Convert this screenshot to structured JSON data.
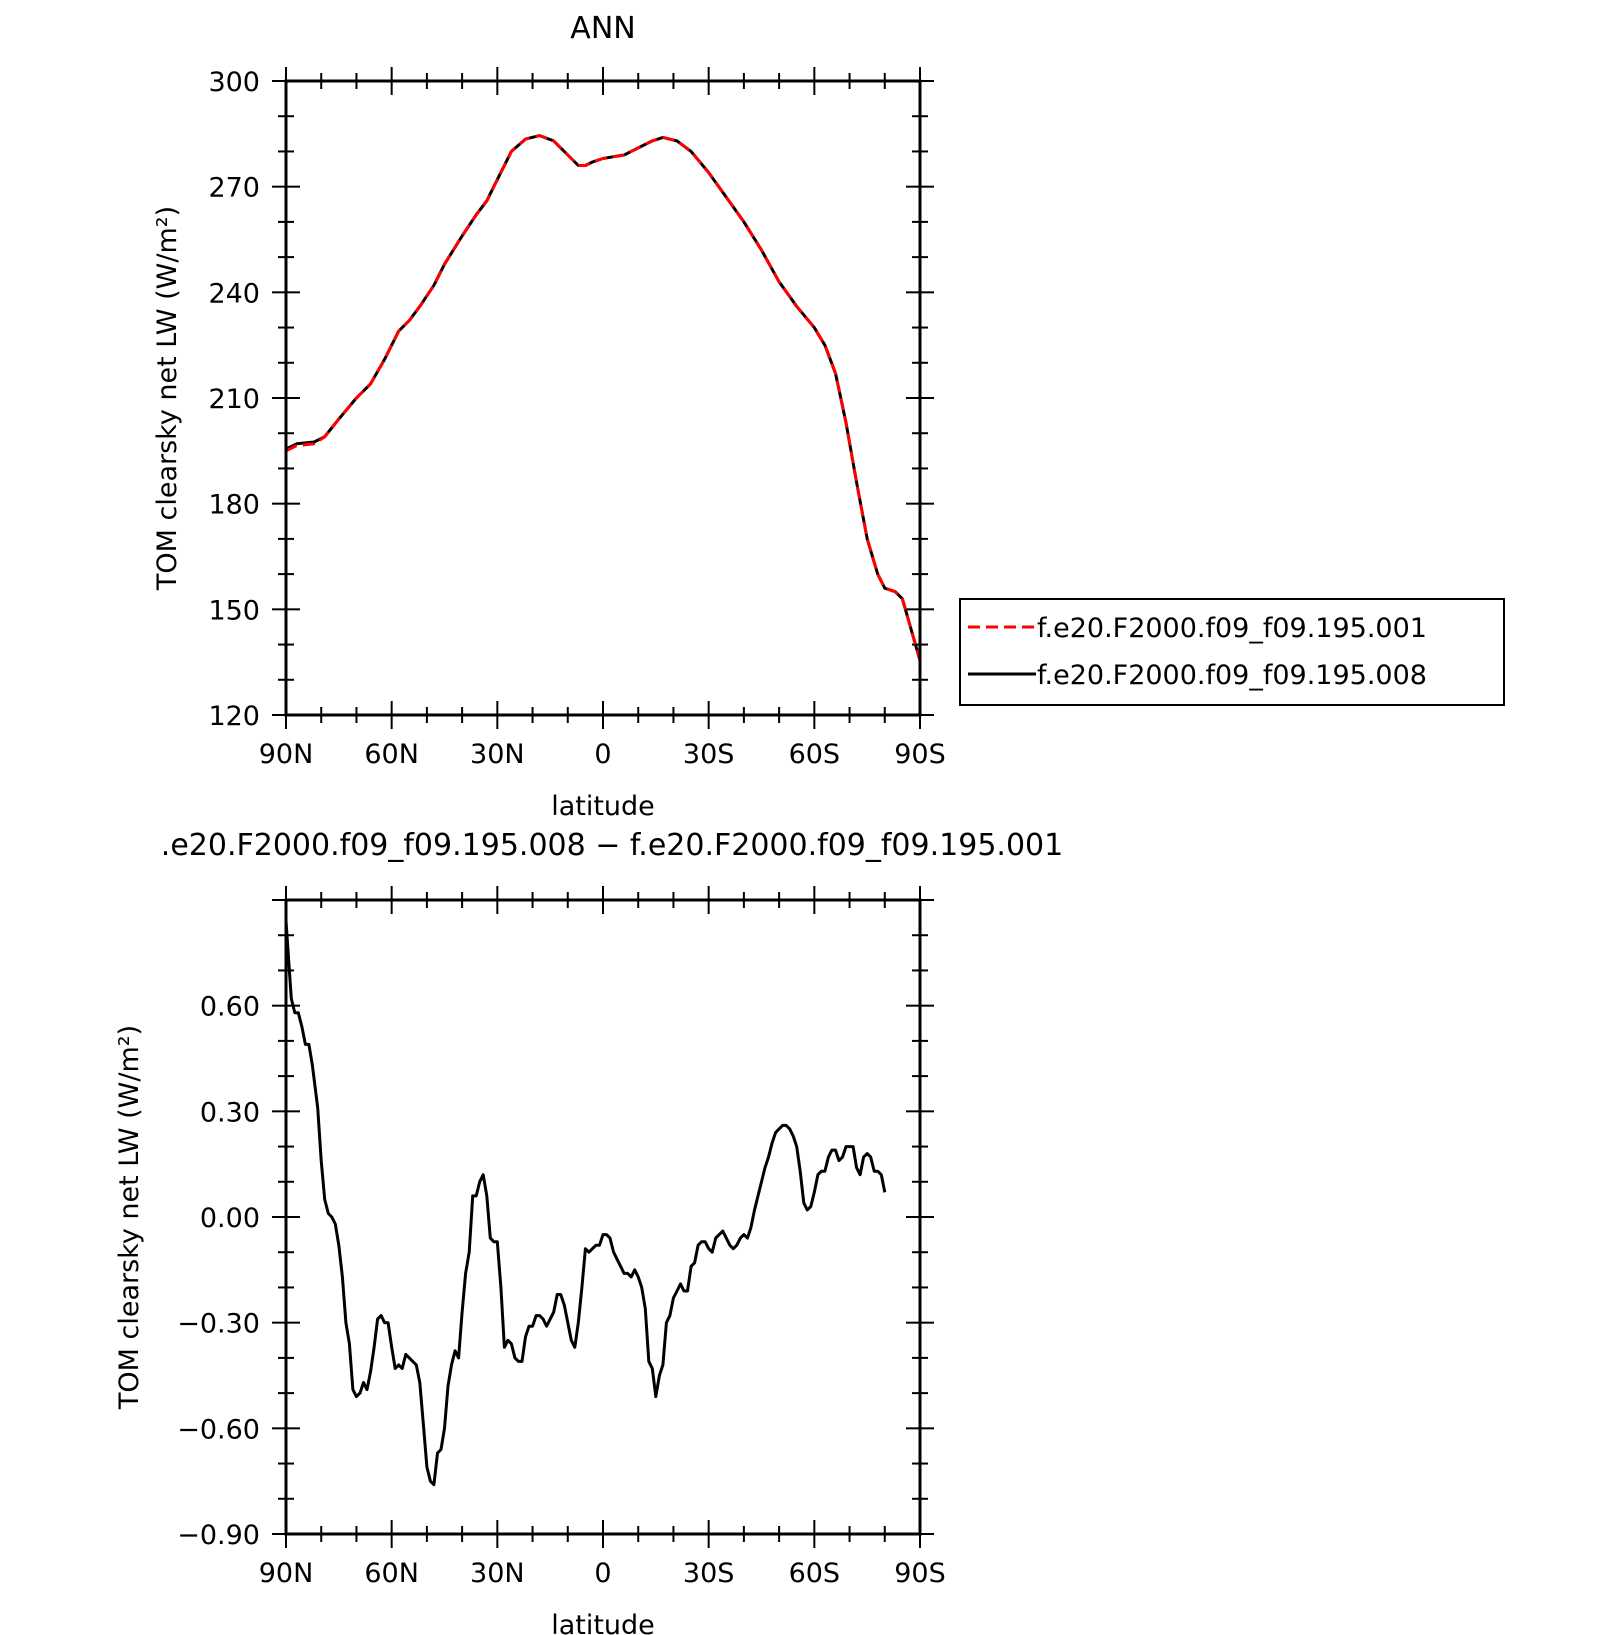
{
  "chart_data": [
    {
      "type": "line",
      "title": "ANN",
      "xlabel": "latitude",
      "ylabel": "TOM clearsky net LW (W/m²)",
      "xlim": [
        90,
        -90
      ],
      "ylim": [
        120,
        300
      ],
      "x_ticks": [
        "90N",
        "60N",
        "30N",
        "0",
        "30S",
        "60S",
        "90S"
      ],
      "y_ticks": [
        "120",
        "150",
        "180",
        "210",
        "240",
        "270",
        "300"
      ],
      "legend_position": "right",
      "series": [
        {
          "name": "f.e20.F2000.f09_f09.195.001",
          "color": "#ff0000",
          "dash": true,
          "points": [
            [
              90,
              195
            ],
            [
              87,
              196.5
            ],
            [
              82,
              197
            ],
            [
              79,
              199
            ],
            [
              75,
              204
            ],
            [
              70,
              210
            ],
            [
              66,
              214
            ],
            [
              62,
              221
            ],
            [
              58,
              229
            ],
            [
              55,
              232
            ],
            [
              52,
              236
            ],
            [
              48,
              242
            ],
            [
              45,
              248
            ],
            [
              40,
              256
            ],
            [
              36,
              262
            ],
            [
              33,
              266
            ],
            [
              30,
              272
            ],
            [
              26,
              280
            ],
            [
              22,
              283.5
            ],
            [
              18,
              284.5
            ],
            [
              14,
              283
            ],
            [
              10,
              279
            ],
            [
              7,
              276
            ],
            [
              5,
              276
            ],
            [
              3,
              277
            ],
            [
              0,
              278
            ],
            [
              -3,
              278.5
            ],
            [
              -6,
              279
            ],
            [
              -10,
              281
            ],
            [
              -14,
              283
            ],
            [
              -17,
              284
            ],
            [
              -21,
              283
            ],
            [
              -25,
              280
            ],
            [
              -30,
              274
            ],
            [
              -35,
              267
            ],
            [
              -40,
              260
            ],
            [
              -45,
              252
            ],
            [
              -50,
              243
            ],
            [
              -55,
              236
            ],
            [
              -60,
              230
            ],
            [
              -63,
              225
            ],
            [
              -66,
              217
            ],
            [
              -69,
              203
            ],
            [
              -72,
              186
            ],
            [
              -75,
              170
            ],
            [
              -78,
              160
            ],
            [
              -80,
              156
            ],
            [
              -83,
              155
            ],
            [
              -85,
              153
            ],
            [
              -87,
              146
            ],
            [
              -90,
              135.5
            ]
          ]
        },
        {
          "name": "f.e20.F2000.f09_f09.195.008",
          "color": "#000000",
          "dash": false,
          "points": [
            [
              90,
              195.5
            ],
            [
              87,
              197
            ],
            [
              82,
              197.5
            ],
            [
              79,
              199
            ],
            [
              75,
              204
            ],
            [
              70,
              210
            ],
            [
              66,
              214
            ],
            [
              62,
              221
            ],
            [
              58,
              229
            ],
            [
              55,
              232
            ],
            [
              52,
              236
            ],
            [
              48,
              242
            ],
            [
              45,
              248
            ],
            [
              40,
              256
            ],
            [
              36,
              262
            ],
            [
              33,
              266
            ],
            [
              30,
              272
            ],
            [
              26,
              280
            ],
            [
              22,
              283.5
            ],
            [
              18,
              284.5
            ],
            [
              14,
              283
            ],
            [
              10,
              279
            ],
            [
              7,
              276
            ],
            [
              5,
              276
            ],
            [
              3,
              277
            ],
            [
              0,
              278
            ],
            [
              -3,
              278.5
            ],
            [
              -6,
              279
            ],
            [
              -10,
              281
            ],
            [
              -14,
              283
            ],
            [
              -17,
              284
            ],
            [
              -21,
              283
            ],
            [
              -25,
              280
            ],
            [
              -30,
              274
            ],
            [
              -35,
              267
            ],
            [
              -40,
              260
            ],
            [
              -45,
              252
            ],
            [
              -50,
              243
            ],
            [
              -55,
              236
            ],
            [
              -60,
              230
            ],
            [
              -63,
              225
            ],
            [
              -66,
              217
            ],
            [
              -69,
              203
            ],
            [
              -72,
              186
            ],
            [
              -75,
              170
            ],
            [
              -78,
              160
            ],
            [
              -80,
              156
            ],
            [
              -83,
              155
            ],
            [
              -85,
              153
            ],
            [
              -87,
              146
            ],
            [
              -90,
              135.5
            ]
          ]
        }
      ]
    },
    {
      "type": "line",
      "title": ".e20.F2000.f09_f09.195.008 − f.e20.F2000.f09_f09.195.001",
      "xlabel": "latitude",
      "ylabel": "TOM clearsky net LW (W/m²)",
      "xlim": [
        90,
        -90
      ],
      "ylim": [
        -0.9,
        0.9
      ],
      "x_ticks": [
        "90N",
        "60N",
        "30N",
        "0",
        "30S",
        "60S",
        "90S"
      ],
      "y_ticks": [
        "−0.90",
        "−0.60",
        "−0.30",
        "0.00",
        "0.30",
        "0.60"
      ],
      "series": [
        {
          "color": "#000000",
          "dash": false,
          "points": [
            [
              90,
              0.84
            ],
            [
              88.5,
              0.62
            ],
            [
              87.5,
              0.58
            ],
            [
              86.5,
              0.58
            ],
            [
              85.5,
              0.54
            ],
            [
              84.5,
              0.49
            ],
            [
              83.5,
              0.49
            ],
            [
              82.5,
              0.43
            ],
            [
              81,
              0.31
            ],
            [
              80,
              0.16
            ],
            [
              79,
              0.05
            ],
            [
              78,
              0.01
            ],
            [
              77,
              0.0
            ],
            [
              76,
              -0.02
            ],
            [
              75,
              -0.08
            ],
            [
              74,
              -0.17
            ],
            [
              73,
              -0.3
            ],
            [
              72,
              -0.36
            ],
            [
              71,
              -0.49
            ],
            [
              70,
              -0.51
            ],
            [
              69,
              -0.5
            ],
            [
              68,
              -0.47
            ],
            [
              67,
              -0.49
            ],
            [
              66,
              -0.44
            ],
            [
              65,
              -0.37
            ],
            [
              64,
              -0.29
            ],
            [
              63,
              -0.28
            ],
            [
              62,
              -0.3
            ],
            [
              61,
              -0.3
            ],
            [
              60,
              -0.37
            ],
            [
              59,
              -0.43
            ],
            [
              58,
              -0.42
            ],
            [
              57,
              -0.43
            ],
            [
              56,
              -0.39
            ],
            [
              55,
              -0.4
            ],
            [
              53,
              -0.42
            ],
            [
              52,
              -0.47
            ],
            [
              51,
              -0.59
            ],
            [
              50,
              -0.71
            ],
            [
              49,
              -0.75
            ],
            [
              48,
              -0.76
            ],
            [
              47,
              -0.67
            ],
            [
              46,
              -0.66
            ],
            [
              45,
              -0.6
            ],
            [
              44,
              -0.48
            ],
            [
              43,
              -0.42
            ],
            [
              42,
              -0.38
            ],
            [
              41,
              -0.4
            ],
            [
              40,
              -0.27
            ],
            [
              39,
              -0.16
            ],
            [
              38,
              -0.1
            ],
            [
              37,
              0.06
            ],
            [
              36,
              0.06
            ],
            [
              35,
              0.1
            ],
            [
              34,
              0.12
            ],
            [
              33,
              0.06
            ],
            [
              32,
              -0.06
            ],
            [
              31,
              -0.07
            ],
            [
              30,
              -0.07
            ],
            [
              29,
              -0.2
            ],
            [
              28,
              -0.37
            ],
            [
              27,
              -0.35
            ],
            [
              26,
              -0.36
            ],
            [
              25,
              -0.4
            ],
            [
              24,
              -0.41
            ],
            [
              23,
              -0.41
            ],
            [
              22,
              -0.34
            ],
            [
              21,
              -0.31
            ],
            [
              20,
              -0.31
            ],
            [
              19,
              -0.28
            ],
            [
              18,
              -0.28
            ],
            [
              17,
              -0.29
            ],
            [
              16,
              -0.31
            ],
            [
              15,
              -0.29
            ],
            [
              14,
              -0.27
            ],
            [
              13,
              -0.22
            ],
            [
              12,
              -0.22
            ],
            [
              11,
              -0.25
            ],
            [
              10,
              -0.3
            ],
            [
              9,
              -0.35
            ],
            [
              8,
              -0.37
            ],
            [
              7,
              -0.3
            ],
            [
              6,
              -0.2
            ],
            [
              5,
              -0.09
            ],
            [
              4,
              -0.1
            ],
            [
              3,
              -0.09
            ],
            [
              2,
              -0.08
            ],
            [
              1,
              -0.08
            ],
            [
              0,
              -0.05
            ],
            [
              -1,
              -0.05
            ],
            [
              -2,
              -0.06
            ],
            [
              -3,
              -0.1
            ],
            [
              -4,
              -0.12
            ],
            [
              -5,
              -0.14
            ],
            [
              -6,
              -0.16
            ],
            [
              -7,
              -0.16
            ],
            [
              -8,
              -0.17
            ],
            [
              -9,
              -0.15
            ],
            [
              -10,
              -0.17
            ],
            [
              -11,
              -0.2
            ],
            [
              -12,
              -0.26
            ],
            [
              -13,
              -0.41
            ],
            [
              -14,
              -0.43
            ],
            [
              -15,
              -0.51
            ],
            [
              -16,
              -0.45
            ],
            [
              -17,
              -0.42
            ],
            [
              -18,
              -0.3
            ],
            [
              -19,
              -0.28
            ],
            [
              -20,
              -0.23
            ],
            [
              -21,
              -0.21
            ],
            [
              -22,
              -0.19
            ],
            [
              -23,
              -0.21
            ],
            [
              -24,
              -0.21
            ],
            [
              -25,
              -0.14
            ],
            [
              -26,
              -0.13
            ],
            [
              -27,
              -0.08
            ],
            [
              -28,
              -0.07
            ],
            [
              -29,
              -0.07
            ],
            [
              -30,
              -0.09
            ],
            [
              -31,
              -0.1
            ],
            [
              -32,
              -0.06
            ],
            [
              -33,
              -0.05
            ],
            [
              -34,
              -0.04
            ],
            [
              -35,
              -0.06
            ],
            [
              -36,
              -0.08
            ],
            [
              -37,
              -0.09
            ],
            [
              -38,
              -0.08
            ],
            [
              -39,
              -0.06
            ],
            [
              -40,
              -0.05
            ],
            [
              -41,
              -0.06
            ],
            [
              -42,
              -0.03
            ],
            [
              -43,
              0.02
            ],
            [
              -44,
              0.06
            ],
            [
              -45,
              0.1
            ],
            [
              -46,
              0.14
            ],
            [
              -47,
              0.17
            ],
            [
              -48,
              0.21
            ],
            [
              -49,
              0.24
            ],
            [
              -50,
              0.25
            ],
            [
              -51,
              0.26
            ],
            [
              -52,
              0.26
            ],
            [
              -53,
              0.25
            ],
            [
              -54,
              0.23
            ],
            [
              -55,
              0.2
            ],
            [
              -56,
              0.13
            ],
            [
              -57,
              0.04
            ],
            [
              -58,
              0.02
            ],
            [
              -59,
              0.03
            ],
            [
              -60,
              0.07
            ],
            [
              -61,
              0.12
            ],
            [
              -62,
              0.13
            ],
            [
              -63,
              0.13
            ],
            [
              -64,
              0.17
            ],
            [
              -65,
              0.19
            ],
            [
              -66,
              0.19
            ],
            [
              -67,
              0.16
            ],
            [
              -68,
              0.17
            ],
            [
              -69,
              0.2
            ],
            [
              -70,
              0.2
            ],
            [
              -71,
              0.2
            ],
            [
              -72,
              0.14
            ],
            [
              -73,
              0.12
            ],
            [
              -74,
              0.17
            ],
            [
              -75,
              0.18
            ],
            [
              -76,
              0.17
            ],
            [
              -77,
              0.13
            ],
            [
              -78,
              0.13
            ],
            [
              -79,
              0.12
            ],
            [
              -80,
              0.07
            ]
          ]
        }
      ]
    }
  ]
}
